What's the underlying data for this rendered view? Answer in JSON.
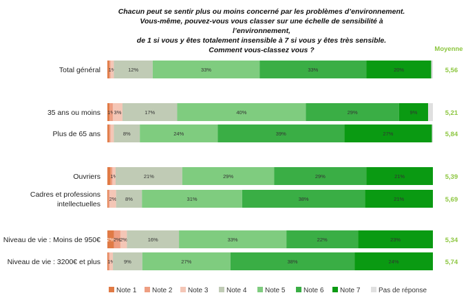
{
  "chart_data": {
    "type": "bar",
    "orientation": "horizontal",
    "stacked": true,
    "title_lines": [
      "Chacun peut se sentir plus ou moins concerné par les problèmes d’environnement.",
      "Vous-même, pouvez-vous vous classer sur une échelle de sensibilité à l’environnement,",
      "de 1 si vous y êtes totalement insensible à 7 si vous y êtes très sensible.",
      "Comment vous-classez vous ?"
    ],
    "mean_header": "Moyenne",
    "legend_position": "bottom",
    "series": [
      {
        "name": "Note 1",
        "color": "#e07a45"
      },
      {
        "name": "Note 2",
        "color": "#ee9e82"
      },
      {
        "name": "Note 3",
        "color": "#f4c6b6"
      },
      {
        "name": "Note 4",
        "color": "#c0cbb5"
      },
      {
        "name": "Note 5",
        "color": "#7fcc7f"
      },
      {
        "name": "Note 6",
        "color": "#3aae45"
      },
      {
        "name": "Note 7",
        "color": "#0a9a12"
      },
      {
        "name": "Pas de réponse",
        "color": "#e0e0e0"
      }
    ],
    "rows": [
      {
        "label": [
          "Total général"
        ],
        "values": [
          0.6,
          0.4,
          1,
          12,
          33,
          33,
          20,
          0.5
        ],
        "labels": [
          "",
          "",
          "1%",
          "12%",
          "33%",
          "33%",
          "20%",
          ""
        ],
        "mean": "5,56"
      },
      {
        "label": [
          "35 ans ou moins"
        ],
        "values": [
          0.7,
          1,
          3,
          17,
          40,
          29,
          9,
          1.5
        ],
        "labels": [
          "",
          "1%",
          "3%",
          "17%",
          "40%",
          "29%",
          "9%",
          ""
        ],
        "mean": "5,21"
      },
      {
        "label": [
          "Plus de 65 ans"
        ],
        "values": [
          0.6,
          0.4,
          1,
          8,
          24,
          39,
          27,
          0.3
        ],
        "labels": [
          "",
          "",
          "",
          "8%",
          "24%",
          "39%",
          "27%",
          ""
        ],
        "mean": "5,84"
      },
      {
        "label": [
          "Ouvriers"
        ],
        "values": [
          1,
          0.6,
          1,
          21,
          29,
          29,
          21,
          0
        ],
        "labels": [
          "",
          "",
          "1%",
          "21%",
          "29%",
          "29%",
          "21%",
          ""
        ],
        "mean": "5,39"
      },
      {
        "label": [
          "Cadres et professions",
          "intellectuelles"
        ],
        "values": [
          0.3,
          0.4,
          2,
          8,
          31,
          38,
          21,
          0
        ],
        "labels": [
          "",
          "",
          "2%",
          "8%",
          "31%",
          "38%",
          "21%",
          ""
        ],
        "mean": "5,69"
      },
      {
        "label": [
          "Niveau de vie : Moins de 950€"
        ],
        "values": [
          2,
          2,
          2,
          16,
          33,
          22,
          23,
          0
        ],
        "labels": [
          "2%",
          "2%",
          "2%",
          "16%",
          "33%",
          "22%",
          "23%",
          ""
        ],
        "mean": "5,34"
      },
      {
        "label": [
          "Niveau de vie : 3200€ et plus"
        ],
        "values": [
          0.3,
          0.4,
          1,
          9,
          27,
          38,
          24,
          0
        ],
        "labels": [
          "",
          "",
          "1%",
          "9%",
          "27%",
          "38%",
          "24%",
          ""
        ],
        "mean": "5,74"
      }
    ]
  }
}
